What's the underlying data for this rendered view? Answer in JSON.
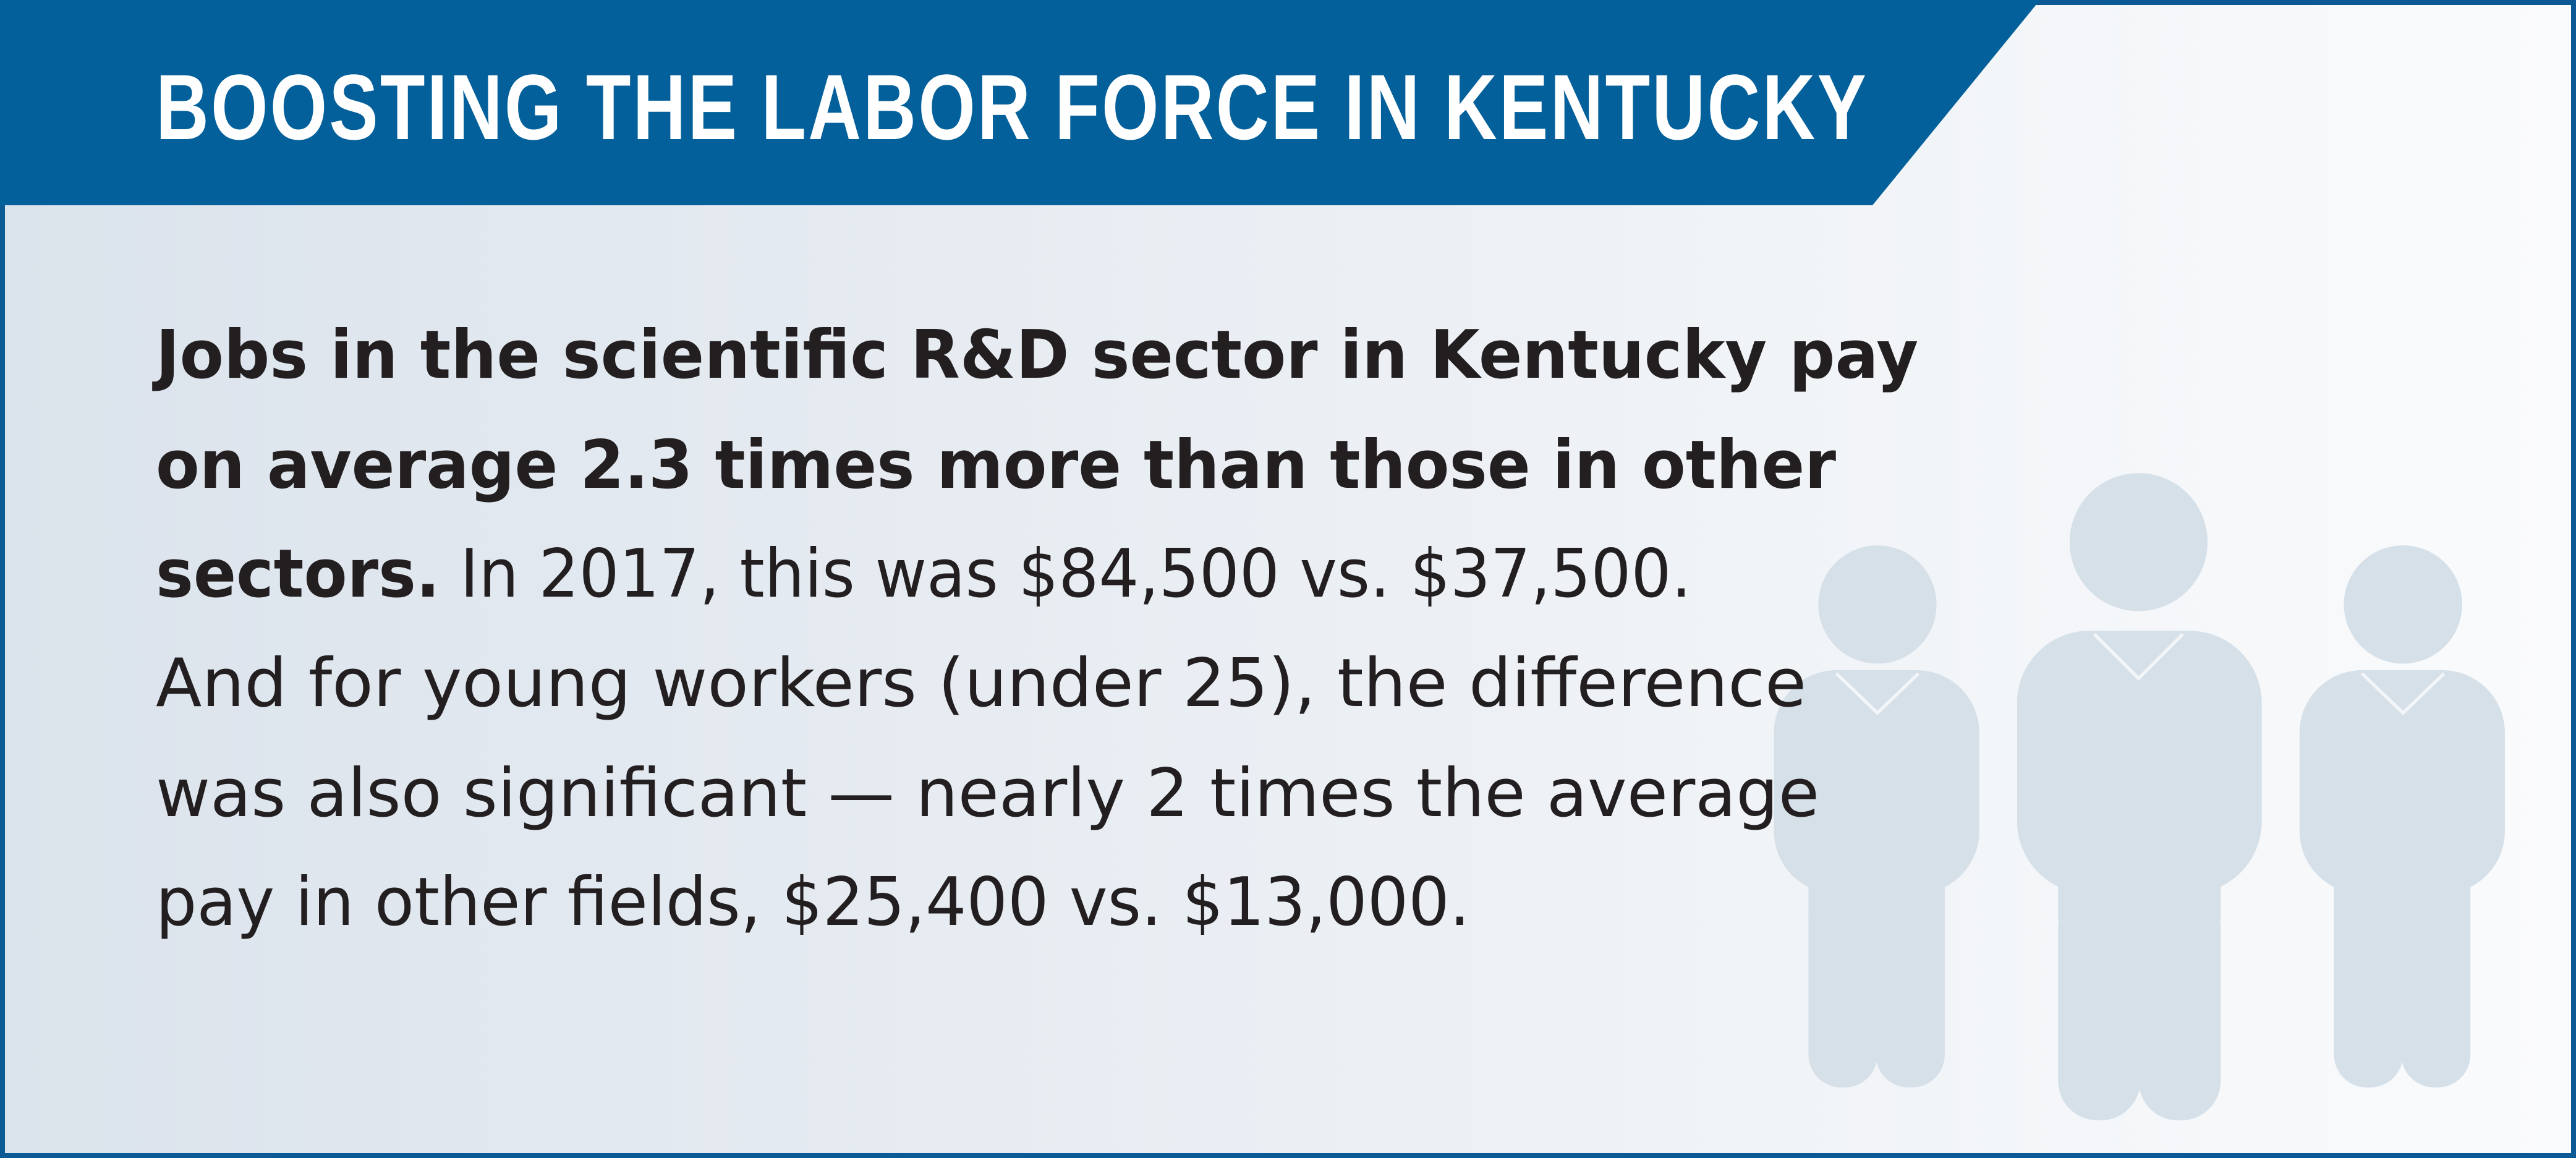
{
  "header": {
    "title": "BOOSTING THE LABOR FORCE IN KENTUCKY"
  },
  "body": {
    "lines": [
      {
        "bold": "Jobs in the scientific R&D sector in Kentucky pay"
      },
      {
        "bold": "on average 2.3 times more than those in other"
      },
      {
        "bold": "sectors.",
        "regular": "In 2017, this was $84,500 vs. $37,500."
      },
      {
        "regular": "And for young workers (under 25), the difference"
      },
      {
        "regular": "was also significant — nearly 2 times the average"
      },
      {
        "regular": "pay in other fields, $25,400 vs. $13,000."
      }
    ]
  }
}
